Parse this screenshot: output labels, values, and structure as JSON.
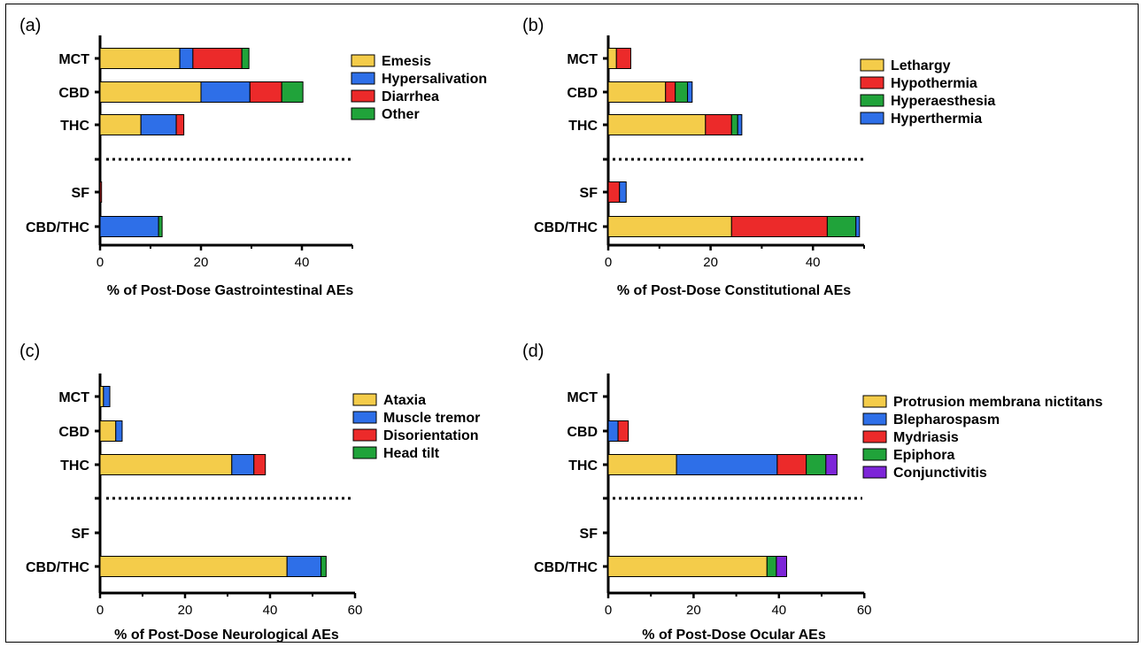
{
  "figure": {
    "background": "#ffffff"
  },
  "colors": {
    "yellow": "#F4CC4A",
    "blue": "#2E6FE8",
    "red": "#EC2A2A",
    "green": "#20A33A",
    "purple": "#7D25D8",
    "stroke": "#000000"
  },
  "chart_data": [
    {
      "type": "bar",
      "orientation": "horizontal",
      "stacked": true,
      "panel_label": "(a)",
      "xlabel": "% of Post-Dose Gastrointestinal AEs",
      "xlim": [
        0,
        50
      ],
      "xticks": [
        0,
        20,
        40
      ],
      "categories": [
        "MCT",
        "CBD",
        "THC",
        "SF",
        "CBD/THC"
      ],
      "separator_after": "THC",
      "legend_position": "top-right",
      "series": [
        {
          "name": "Emesis",
          "color": "#F4CC4A",
          "values": [
            15.8,
            20.0,
            8.1,
            0,
            0
          ]
        },
        {
          "name": "Hypersalivation",
          "color": "#2E6FE8",
          "values": [
            2.6,
            9.7,
            7.0,
            0,
            11.6
          ]
        },
        {
          "name": "Diarrhea",
          "color": "#EC2A2A",
          "values": [
            9.7,
            6.3,
            1.5,
            0.3,
            0
          ]
        },
        {
          "name": "Other",
          "color": "#20A33A",
          "values": [
            1.4,
            4.2,
            0,
            0,
            0.7
          ]
        }
      ]
    },
    {
      "type": "bar",
      "orientation": "horizontal",
      "stacked": true,
      "panel_label": "(b)",
      "xlabel": "% of Post-Dose Constitutional AEs",
      "xlim": [
        0,
        50
      ],
      "xticks": [
        0,
        20,
        40
      ],
      "categories": [
        "MCT",
        "CBD",
        "THC",
        "SF",
        "CBD/THC"
      ],
      "separator_after": "THC",
      "legend_position": "top-right",
      "series": [
        {
          "name": "Lethargy",
          "color": "#F4CC4A",
          "values": [
            1.6,
            11.2,
            19.0,
            0,
            24.1
          ]
        },
        {
          "name": "Hypothermia",
          "color": "#EC2A2A",
          "values": [
            2.8,
            1.9,
            5.1,
            2.2,
            18.7
          ]
        },
        {
          "name": "Hyperaesthesia",
          "color": "#20A33A",
          "values": [
            0,
            2.4,
            1.2,
            0,
            5.6
          ]
        },
        {
          "name": "Hyperthermia",
          "color": "#2E6FE8",
          "values": [
            0,
            0.9,
            0.8,
            1.3,
            0.7
          ]
        }
      ]
    },
    {
      "type": "bar",
      "orientation": "horizontal",
      "stacked": true,
      "panel_label": "(c)",
      "xlabel": "% of Post-Dose Neurological AEs",
      "xlim": [
        0,
        60
      ],
      "xticks": [
        0,
        20,
        40,
        60
      ],
      "categories": [
        "MCT",
        "CBD",
        "THC",
        "SF",
        "CBD/THC"
      ],
      "separator_after": "THC",
      "legend_position": "top-right",
      "series": [
        {
          "name": "Ataxia",
          "color": "#F4CC4A",
          "values": [
            0.8,
            3.7,
            31.0,
            0,
            44.0
          ]
        },
        {
          "name": "Muscle tremor",
          "color": "#2E6FE8",
          "values": [
            1.5,
            1.5,
            5.2,
            0,
            8.0
          ]
        },
        {
          "name": "Disorientation",
          "color": "#EC2A2A",
          "values": [
            0,
            0,
            2.7,
            0,
            0
          ]
        },
        {
          "name": "Head tilt",
          "color": "#20A33A",
          "values": [
            0,
            0,
            0,
            0,
            1.2
          ]
        }
      ]
    },
    {
      "type": "bar",
      "orientation": "horizontal",
      "stacked": true,
      "panel_label": "(d)",
      "xlabel": "% of Post-Dose Ocular AEs",
      "xlim": [
        0,
        60
      ],
      "xticks": [
        0,
        20,
        40,
        60
      ],
      "categories": [
        "MCT",
        "CBD",
        "THC",
        "SF",
        "CBD/THC"
      ],
      "separator_after": "THC",
      "legend_position": "top-right",
      "series": [
        {
          "name": "Protrusion membrana nictitans",
          "color": "#F4CC4A",
          "values": [
            0,
            0,
            16.0,
            0,
            37.2
          ]
        },
        {
          "name": "Blepharospasm",
          "color": "#2E6FE8",
          "values": [
            0,
            2.3,
            23.6,
            0,
            0
          ]
        },
        {
          "name": "Mydriasis",
          "color": "#EC2A2A",
          "values": [
            0,
            2.4,
            6.8,
            0,
            0
          ]
        },
        {
          "name": "Epiphora",
          "color": "#20A33A",
          "values": [
            0,
            0,
            4.6,
            0,
            2.2
          ]
        },
        {
          "name": "Conjunctivitis",
          "color": "#7D25D8",
          "values": [
            0,
            0,
            2.6,
            0,
            2.4
          ]
        }
      ]
    }
  ]
}
